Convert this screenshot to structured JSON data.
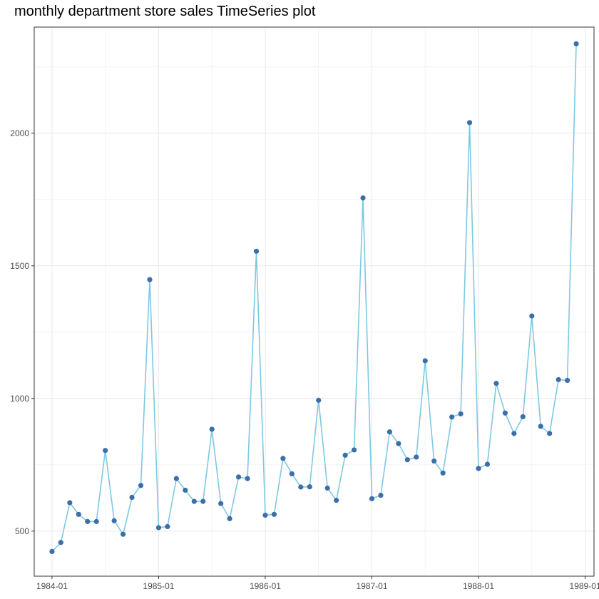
{
  "chart_data": {
    "type": "line",
    "title": "monthly department store sales TimeSeries plot",
    "xlabel": "",
    "ylabel": "",
    "x_tick_labels": [
      "1984-01",
      "1985-01",
      "1986-01",
      "1987-01",
      "1988-01",
      "1989-01"
    ],
    "y_ticks": [
      500,
      1000,
      1500,
      2000
    ],
    "y_minor_ticks": [
      750,
      1250,
      1750,
      2250
    ],
    "xlim": [
      "1983-11",
      "1989-02"
    ],
    "ylim": [
      330,
      2400
    ],
    "grid": true,
    "series": [
      {
        "values": [
          423,
          457,
          607,
          563,
          536,
          536,
          804,
          539,
          488,
          627,
          672,
          1448,
          513,
          517,
          698,
          654,
          612,
          612,
          884,
          604,
          547,
          704,
          698,
          1555,
          560,
          563,
          774,
          716,
          666,
          667,
          993,
          662,
          616,
          786,
          806,
          1756,
          622,
          635,
          874,
          830,
          769,
          779,
          1142,
          764,
          719,
          930,
          942,
          2040,
          736,
          752,
          1057,
          945,
          868,
          931,
          1311,
          895,
          868,
          1071,
          1068,
          2337
        ]
      }
    ],
    "x": [
      "1984-01",
      "1984-02",
      "1984-03",
      "1984-04",
      "1984-05",
      "1984-06",
      "1984-07",
      "1984-08",
      "1984-09",
      "1984-10",
      "1984-11",
      "1984-12",
      "1985-01",
      "1985-02",
      "1985-03",
      "1985-04",
      "1985-05",
      "1985-06",
      "1985-07",
      "1985-08",
      "1985-09",
      "1985-10",
      "1985-11",
      "1985-12",
      "1986-01",
      "1986-02",
      "1986-03",
      "1986-04",
      "1986-05",
      "1986-06",
      "1986-07",
      "1986-08",
      "1986-09",
      "1986-10",
      "1986-11",
      "1986-12",
      "1987-01",
      "1987-02",
      "1987-03",
      "1987-04",
      "1987-05",
      "1987-06",
      "1987-07",
      "1987-08",
      "1987-09",
      "1987-10",
      "1987-11",
      "1987-12",
      "1988-01",
      "1988-02",
      "1988-03",
      "1988-04",
      "1988-05",
      "1988-06",
      "1988-07",
      "1988-08",
      "1988-09",
      "1988-10",
      "1988-11",
      "1988-12"
    ],
    "colors": {
      "line": "#7ec8e3",
      "point": "#3c6fa8",
      "grid_major": "#ebebeb",
      "grid_minor": "#f3f3f3",
      "panel_border": "#333333",
      "tick_label": "#4d4d4d"
    }
  }
}
